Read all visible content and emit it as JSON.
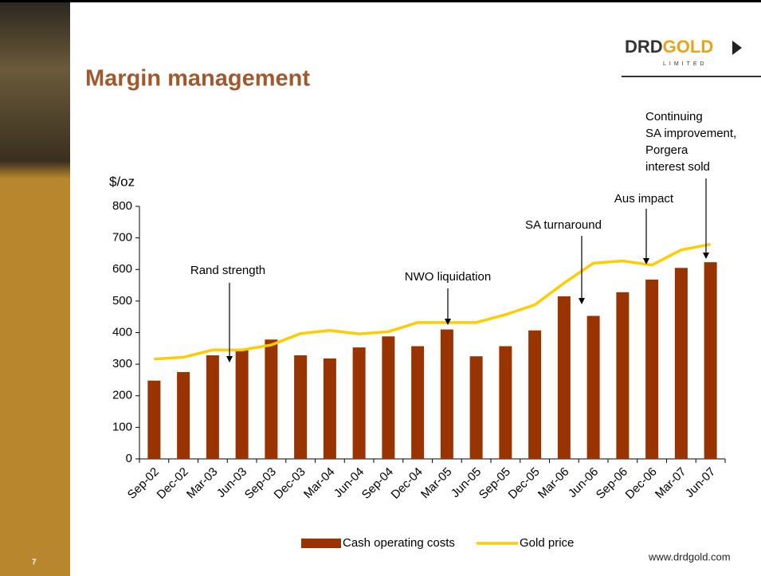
{
  "slide": {
    "title": "Margin management",
    "logo_main": "DRD",
    "logo_accent": "GOLD",
    "logo_sub": "LIMITED",
    "page_number": "7",
    "website": "www.drdgold.com"
  },
  "chart_data": {
    "type": "bar_line",
    "y_label": "$/oz",
    "categories": [
      "Sep-02",
      "Dec-02",
      "Mar-03",
      "Jun-03",
      "Sep-03",
      "Dec-03",
      "Mar-04",
      "Jun-04",
      "Sep-04",
      "Dec-04",
      "Mar-05",
      "Jun-05",
      "Sep-05",
      "Dec-05",
      "Mar-06",
      "Jun-06",
      "Sep-06",
      "Dec-06",
      "Mar-07",
      "Jun-07"
    ],
    "series": [
      {
        "name": "Cash operating costs",
        "kind": "bar",
        "color": "#993300",
        "values": [
          248,
          275,
          328,
          345,
          378,
          328,
          318,
          353,
          388,
          357,
          410,
          325,
          357,
          407,
          515,
          453,
          528,
          568,
          605,
          623
        ]
      },
      {
        "name": "Gold price",
        "kind": "line",
        "color": "#ffcc00",
        "values": [
          316,
          322,
          345,
          345,
          361,
          397,
          407,
          396,
          403,
          432,
          432,
          432,
          457,
          488,
          557,
          620,
          627,
          614,
          662,
          680
        ]
      }
    ],
    "ylim": [
      0,
      800
    ],
    "yticks": [
      0,
      100,
      200,
      300,
      400,
      500,
      600,
      700,
      800
    ],
    "annotations": [
      {
        "lines": [
          "Rand strength"
        ]
      },
      {
        "lines": [
          "NWO liquidation"
        ]
      },
      {
        "lines": [
          "SA turnaround"
        ]
      },
      {
        "lines": [
          "Aus impact"
        ]
      },
      {
        "lines": [
          "Continuing",
          "SA improvement,",
          "Porgera",
          "interest sold"
        ]
      }
    ]
  }
}
